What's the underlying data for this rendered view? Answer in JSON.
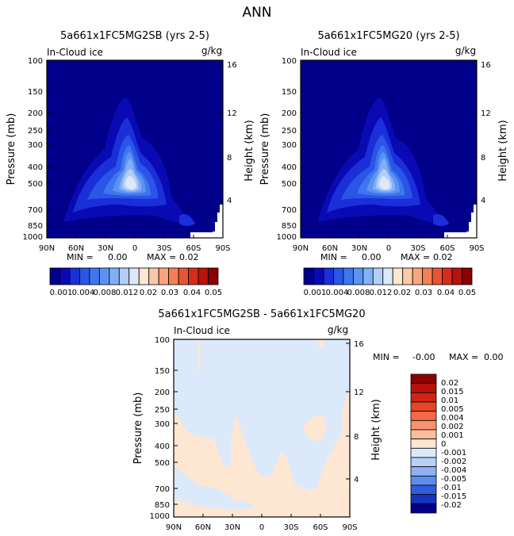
{
  "figure_title": "ANN",
  "chart_data": [
    {
      "type": "heatmap",
      "title": "5a661x1FC5MG2SB (yrs 2-5)",
      "field_label": "In-Cloud ice",
      "units": "g/kg",
      "xlabel": "",
      "ylabel": "Pressure (mb)",
      "y2label": "Height (km)",
      "x_ticks": [
        "90N",
        "60N",
        "30N",
        "0",
        "30S",
        "60S",
        "90S"
      ],
      "y_ticks": [
        "100",
        "150",
        "200",
        "250",
        "300",
        "400",
        "500",
        "700",
        "850",
        "1000"
      ],
      "y2_ticks": [
        "16",
        "12",
        "8",
        "4"
      ],
      "xlim": [
        90,
        -90
      ],
      "ylim": [
        1000,
        100
      ],
      "stats": {
        "min_label": "MIN =",
        "min": "0.00",
        "max_label": "MAX =",
        "max": "0.02"
      },
      "peak": {
        "lat": 0,
        "pressure_mb": 520,
        "value": 0.02
      },
      "colorbar": {
        "orientation": "horizontal",
        "labels": [
          "0.001",
          "0.004",
          "0.008",
          "0.012",
          "0.02",
          "0.03",
          "0.04",
          "0.05"
        ],
        "levels": [
          0.001,
          0.002,
          0.004,
          0.006,
          0.008,
          0.01,
          0.012,
          0.015,
          0.02,
          0.025,
          0.03,
          0.035,
          0.04,
          0.045,
          0.05
        ]
      }
    },
    {
      "type": "heatmap",
      "title": "5a661x1FC5MG20 (yrs 2-5)",
      "field_label": "In-Cloud ice",
      "units": "g/kg",
      "xlabel": "",
      "ylabel": "Pressure (mb)",
      "y2label": "Height (km)",
      "x_ticks": [
        "90N",
        "60N",
        "30N",
        "0",
        "30S",
        "60S",
        "90S"
      ],
      "y_ticks": [
        "100",
        "150",
        "200",
        "250",
        "300",
        "400",
        "500",
        "700",
        "850",
        "1000"
      ],
      "y2_ticks": [
        "16",
        "12",
        "8",
        "4"
      ],
      "xlim": [
        90,
        -90
      ],
      "ylim": [
        1000,
        100
      ],
      "stats": {
        "min_label": "MIN =",
        "min": "0.00",
        "max_label": "MAX =",
        "max": "0.02"
      },
      "peak": {
        "lat": 0,
        "pressure_mb": 520,
        "value": 0.02
      },
      "colorbar": {
        "orientation": "horizontal",
        "labels": [
          "0.001",
          "0.004",
          "0.008",
          "0.012",
          "0.02",
          "0.03",
          "0.04",
          "0.05"
        ],
        "levels": [
          0.001,
          0.002,
          0.004,
          0.006,
          0.008,
          0.01,
          0.012,
          0.015,
          0.02,
          0.025,
          0.03,
          0.035,
          0.04,
          0.045,
          0.05
        ]
      }
    },
    {
      "type": "heatmap",
      "title": "5a661x1FC5MG2SB - 5a661x1FC5MG20",
      "field_label": "In-Cloud ice",
      "units": "g/kg",
      "xlabel": "",
      "ylabel": "Pressure (mb)",
      "y2label": "Height (km)",
      "x_ticks": [
        "90N",
        "60N",
        "30N",
        "0",
        "30S",
        "60S",
        "90S"
      ],
      "y_ticks": [
        "100",
        "150",
        "200",
        "250",
        "300",
        "400",
        "500",
        "700",
        "850",
        "1000"
      ],
      "y2_ticks": [
        "16",
        "12",
        "8",
        "4"
      ],
      "xlim": [
        90,
        -90
      ],
      "ylim": [
        1000,
        100
      ],
      "stats": {
        "min_label": "MIN =",
        "min": "-0.00",
        "max_label": "MAX =",
        "max": "0.00"
      },
      "colorbar": {
        "orientation": "vertical",
        "labels": [
          "0.02",
          "0.015",
          "0.01",
          "0.005",
          "0.004",
          "0.002",
          "0.001",
          "0",
          "-0.001",
          "-0.002",
          "-0.004",
          "-0.005",
          "-0.01",
          "-0.015",
          "-0.02"
        ]
      }
    }
  ],
  "colors": {
    "blue_ramp": [
      "#00008b",
      "#0a0ab4",
      "#1a2fd8",
      "#2a55e6",
      "#3e76ee",
      "#5c92f2",
      "#82b0f5",
      "#b4cef8",
      "#dde8fa"
    ],
    "red_ramp": [
      "#fde6d2",
      "#fcc8a8",
      "#f9a57d",
      "#f47f56",
      "#e85535",
      "#d62c1a",
      "#b8120c",
      "#8b0000"
    ],
    "diff_colors": [
      "#8b0000",
      "#b8120c",
      "#d02316",
      "#e64526",
      "#f26a44",
      "#f79270",
      "#fbbd9c",
      "#fde6d2",
      "#dce9fb",
      "#b8d0f8",
      "#8fb1f2",
      "#5d8cea",
      "#2f5ddc",
      "#1634c0",
      "#00008b"
    ],
    "diff_fill_neg": "#dce9fb",
    "diff_fill_pos": "#fde6d2"
  }
}
